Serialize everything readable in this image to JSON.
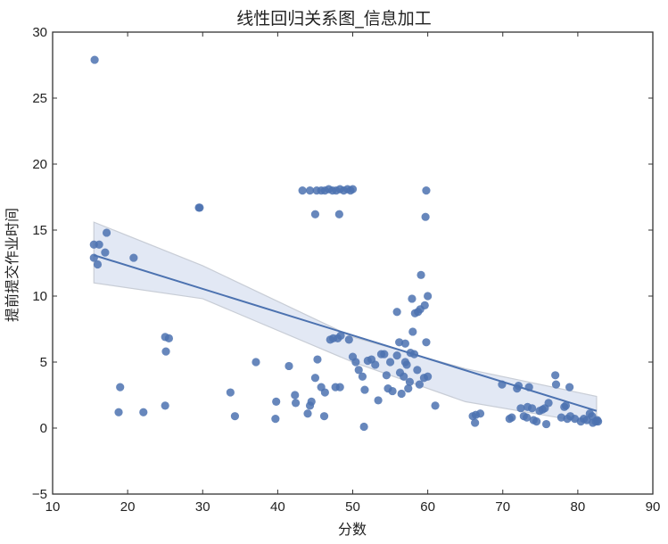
{
  "chart_data": {
    "type": "scatter",
    "title": "线性回归关系图_信息加工",
    "xlabel": "分数",
    "ylabel": "提前提交作业时间",
    "xlim": [
      10,
      90
    ],
    "ylim": [
      -5,
      30
    ],
    "xticks": [
      10,
      20,
      30,
      40,
      50,
      60,
      70,
      80,
      90
    ],
    "yticks": [
      -5,
      0,
      5,
      10,
      15,
      20,
      25,
      30
    ],
    "grid": false,
    "legend": null,
    "point_color": "#4c72b0",
    "regression": {
      "x_range": [
        15.5,
        82.5
      ],
      "y_start": 13.1,
      "y_end": 1.3,
      "ci_upper": [
        [
          15.5,
          15.6
        ],
        [
          30,
          12.3
        ],
        [
          50,
          6.9
        ],
        [
          65,
          4.5
        ],
        [
          82.5,
          2.4
        ]
      ],
      "ci_lower": [
        [
          15.5,
          11.0
        ],
        [
          30,
          9.8
        ],
        [
          50,
          5.0
        ],
        [
          65,
          2.0
        ],
        [
          82.5,
          0.3
        ]
      ],
      "line_color": "#4c72b0",
      "band_color": "#dde4f2"
    },
    "points": [
      [
        15.6,
        27.9
      ],
      [
        15.5,
        13.9
      ],
      [
        16.2,
        13.9
      ],
      [
        17.2,
        14.8
      ],
      [
        17.0,
        13.3
      ],
      [
        15.5,
        12.9
      ],
      [
        16.0,
        12.4
      ],
      [
        20.8,
        12.9
      ],
      [
        29.6,
        16.7
      ],
      [
        29.5,
        16.7
      ],
      [
        25.0,
        6.9
      ],
      [
        25.5,
        6.8
      ],
      [
        25.1,
        5.8
      ],
      [
        25.0,
        1.7
      ],
      [
        19.0,
        3.1
      ],
      [
        18.8,
        1.2
      ],
      [
        22.1,
        1.2
      ],
      [
        33.7,
        2.7
      ],
      [
        34.3,
        0.9
      ],
      [
        37.1,
        5.0
      ],
      [
        39.8,
        2.0
      ],
      [
        39.7,
        0.7
      ],
      [
        41.5,
        4.7
      ],
      [
        42.3,
        2.5
      ],
      [
        42.4,
        1.9
      ],
      [
        43.3,
        18.0
      ],
      [
        44.3,
        18.0
      ],
      [
        45.2,
        18.0
      ],
      [
        45.8,
        18.0
      ],
      [
        46.3,
        18.0
      ],
      [
        46.8,
        18.1
      ],
      [
        47.3,
        18.0
      ],
      [
        47.8,
        18.0
      ],
      [
        48.3,
        18.1
      ],
      [
        48.8,
        18.0
      ],
      [
        49.3,
        18.1
      ],
      [
        49.7,
        18.0
      ],
      [
        50.0,
        18.1
      ],
      [
        45.0,
        16.2
      ],
      [
        48.2,
        16.2
      ],
      [
        59.8,
        18.0
      ],
      [
        59.7,
        16.0
      ],
      [
        44.3,
        1.7
      ],
      [
        44.0,
        1.1
      ],
      [
        44.5,
        2.0
      ],
      [
        45.0,
        3.8
      ],
      [
        45.3,
        5.2
      ],
      [
        45.8,
        3.1
      ],
      [
        46.3,
        2.7
      ],
      [
        46.2,
        0.9
      ],
      [
        47.0,
        6.7
      ],
      [
        47.4,
        6.8
      ],
      [
        48.0,
        6.8
      ],
      [
        48.4,
        7.0
      ],
      [
        49.5,
        6.7
      ],
      [
        47.7,
        3.1
      ],
      [
        48.3,
        3.1
      ],
      [
        50.0,
        5.4
      ],
      [
        50.4,
        5.0
      ],
      [
        50.8,
        4.4
      ],
      [
        51.3,
        3.9
      ],
      [
        51.5,
        0.1
      ],
      [
        51.6,
        2.9
      ],
      [
        52.0,
        5.1
      ],
      [
        52.5,
        5.2
      ],
      [
        53.0,
        4.8
      ],
      [
        53.4,
        2.1
      ],
      [
        53.8,
        5.6
      ],
      [
        54.2,
        5.6
      ],
      [
        54.5,
        4.0
      ],
      [
        54.7,
        3.0
      ],
      [
        55.0,
        5.0
      ],
      [
        55.3,
        2.8
      ],
      [
        55.9,
        5.5
      ],
      [
        56.2,
        6.5
      ],
      [
        56.5,
        2.6
      ],
      [
        56.8,
        3.9
      ],
      [
        57.0,
        6.4
      ],
      [
        57.2,
        4.8
      ],
      [
        57.4,
        3.0
      ],
      [
        57.7,
        5.7
      ],
      [
        58.0,
        7.3
      ],
      [
        58.3,
        8.7
      ],
      [
        57.9,
        9.8
      ],
      [
        58.7,
        8.8
      ],
      [
        59.0,
        9.0
      ],
      [
        59.6,
        9.3
      ],
      [
        60.0,
        10.0
      ],
      [
        59.1,
        11.6
      ],
      [
        59.8,
        6.5
      ],
      [
        58.2,
        5.6
      ],
      [
        58.6,
        4.4
      ],
      [
        58.9,
        3.3
      ],
      [
        59.5,
        3.8
      ],
      [
        60.0,
        3.9
      ],
      [
        61.0,
        1.7
      ],
      [
        55.9,
        8.8
      ],
      [
        57.0,
        5.0
      ],
      [
        56.3,
        4.2
      ],
      [
        57.6,
        3.5
      ],
      [
        66.0,
        0.9
      ],
      [
        66.4,
        1.0
      ],
      [
        66.3,
        0.4
      ],
      [
        67.0,
        1.1
      ],
      [
        69.9,
        3.3
      ],
      [
        70.9,
        0.7
      ],
      [
        71.2,
        0.8
      ],
      [
        71.9,
        3.0
      ],
      [
        72.1,
        3.2
      ],
      [
        72.4,
        1.5
      ],
      [
        72.8,
        0.9
      ],
      [
        73.2,
        0.8
      ],
      [
        73.3,
        1.6
      ],
      [
        73.5,
        3.1
      ],
      [
        73.9,
        1.5
      ],
      [
        74.1,
        0.6
      ],
      [
        74.5,
        0.5
      ],
      [
        74.9,
        1.3
      ],
      [
        75.3,
        1.4
      ],
      [
        75.6,
        1.5
      ],
      [
        75.8,
        0.3
      ],
      [
        76.1,
        1.9
      ],
      [
        77.0,
        4.0
      ],
      [
        77.1,
        3.3
      ],
      [
        77.8,
        0.8
      ],
      [
        78.2,
        1.6
      ],
      [
        78.4,
        1.7
      ],
      [
        78.6,
        0.7
      ],
      [
        78.9,
        3.1
      ],
      [
        79.0,
        0.9
      ],
      [
        79.6,
        0.7
      ],
      [
        80.4,
        0.5
      ],
      [
        80.8,
        0.7
      ],
      [
        81.2,
        0.6
      ],
      [
        81.6,
        1.1
      ],
      [
        81.9,
        0.9
      ],
      [
        82.4,
        0.5
      ],
      [
        82.6,
        0.6
      ],
      [
        82.7,
        0.5
      ],
      [
        82.0,
        0.4
      ]
    ]
  }
}
